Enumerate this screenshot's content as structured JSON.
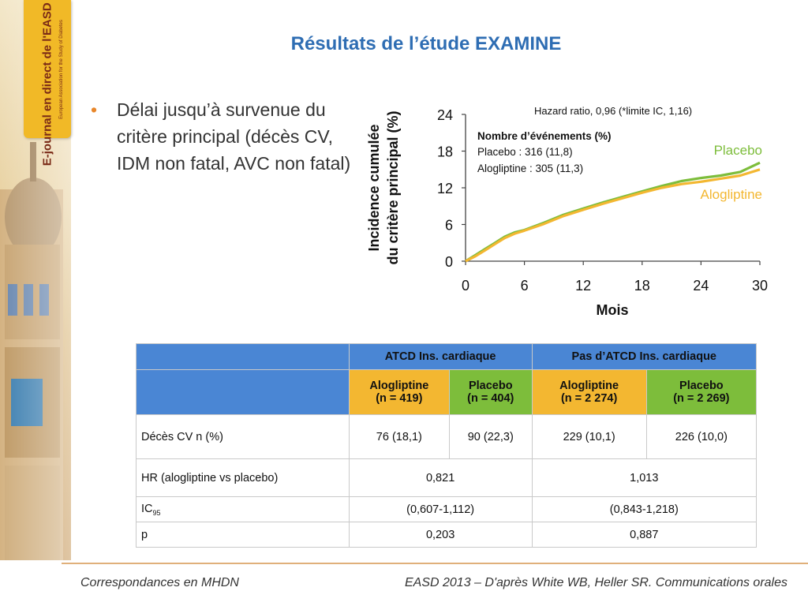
{
  "logo": {
    "brand": "E-journal en direct de l'EASD 2013",
    "sub": "European Association for the Study of Diabetes"
  },
  "title": "Résultats de l’étude EXAMINE",
  "bullet": "Délai jusqu’à survenue du critère principal (décès CV, IDM non fatal, AVC non fatal)",
  "colors": {
    "title": "#2e6db3",
    "placebo": "#7dbd3b",
    "alogliptine": "#f3b731",
    "header_blue": "#4a86d4",
    "bullet": "#e8872b"
  },
  "chart_data": {
    "type": "line",
    "hazard_ratio": "Hazard ratio, 0,96 (*limite IC, 1,16)",
    "events_title": "Nombre d’événements (%)",
    "events_placebo": "Placebo : 316 (11,8)",
    "events_alogliptine": "Alogliptine : 305 (11,3)",
    "ylabel_line1": "Incidence cumulée",
    "ylabel_line2": "du critère principal (%)",
    "xlabel": "Mois",
    "x_ticks": [
      "0",
      "6",
      "12",
      "18",
      "24",
      "30"
    ],
    "y_ticks": [
      "0",
      "6",
      "12",
      "18",
      "24"
    ],
    "xlim": [
      0,
      30
    ],
    "ylim": [
      0,
      24
    ],
    "series": [
      {
        "name": "Placebo",
        "color": "#7dbd3b",
        "x": [
          0,
          1,
          2,
          3,
          4,
          5,
          6,
          8,
          10,
          12,
          14,
          16,
          18,
          20,
          22,
          24,
          26,
          28,
          30
        ],
        "y": [
          0,
          1.0,
          2.0,
          3.0,
          4.0,
          4.7,
          5.1,
          6.3,
          7.6,
          8.6,
          9.6,
          10.5,
          11.4,
          12.3,
          13.1,
          13.6,
          14.0,
          14.6,
          16.1
        ]
      },
      {
        "name": "Alogliptine",
        "color": "#f3b731",
        "x": [
          0,
          1,
          2,
          3,
          4,
          5,
          6,
          8,
          10,
          12,
          14,
          16,
          18,
          20,
          22,
          24,
          26,
          28,
          30
        ],
        "y": [
          0,
          0.8,
          1.8,
          2.8,
          3.8,
          4.5,
          5.0,
          6.1,
          7.4,
          8.4,
          9.4,
          10.3,
          11.2,
          12.0,
          12.6,
          13.0,
          13.5,
          14.0,
          15.0
        ]
      }
    ]
  },
  "table": {
    "group_atcd": "ATCD Ins. cardiaque",
    "group_pas_atcd": "Pas d’ATCD Ins. cardiaque",
    "arms": [
      {
        "name": "Alogliptine",
        "n": "(n = 419)"
      },
      {
        "name": "Placebo",
        "n": "(n = 404)"
      },
      {
        "name": "Alogliptine",
        "n": "(n = 2 274)"
      },
      {
        "name": "Placebo",
        "n": "(n = 2 269)"
      }
    ],
    "row_deces_label": "Décès CV n (%)",
    "row_deces_values": [
      "76 (18,1)",
      "90 (22,3)",
      "229 (10,1)",
      "226 (10,0)"
    ],
    "row_hr_label": "HR (alogliptine vs placebo)",
    "row_hr_values": [
      "0,821",
      "1,013"
    ],
    "row_ic_label": "IC",
    "row_ic_sub": "95",
    "row_ic_values": [
      "(0,607-1,112)",
      "(0,843-1,218)"
    ],
    "row_p_label": "p",
    "row_p_values": [
      "0,203",
      "0,887"
    ]
  },
  "footer": {
    "left": "Correspondances en MHDN",
    "right": "EASD 2013 – D'après White WB, Heller SR. Communications orales"
  }
}
